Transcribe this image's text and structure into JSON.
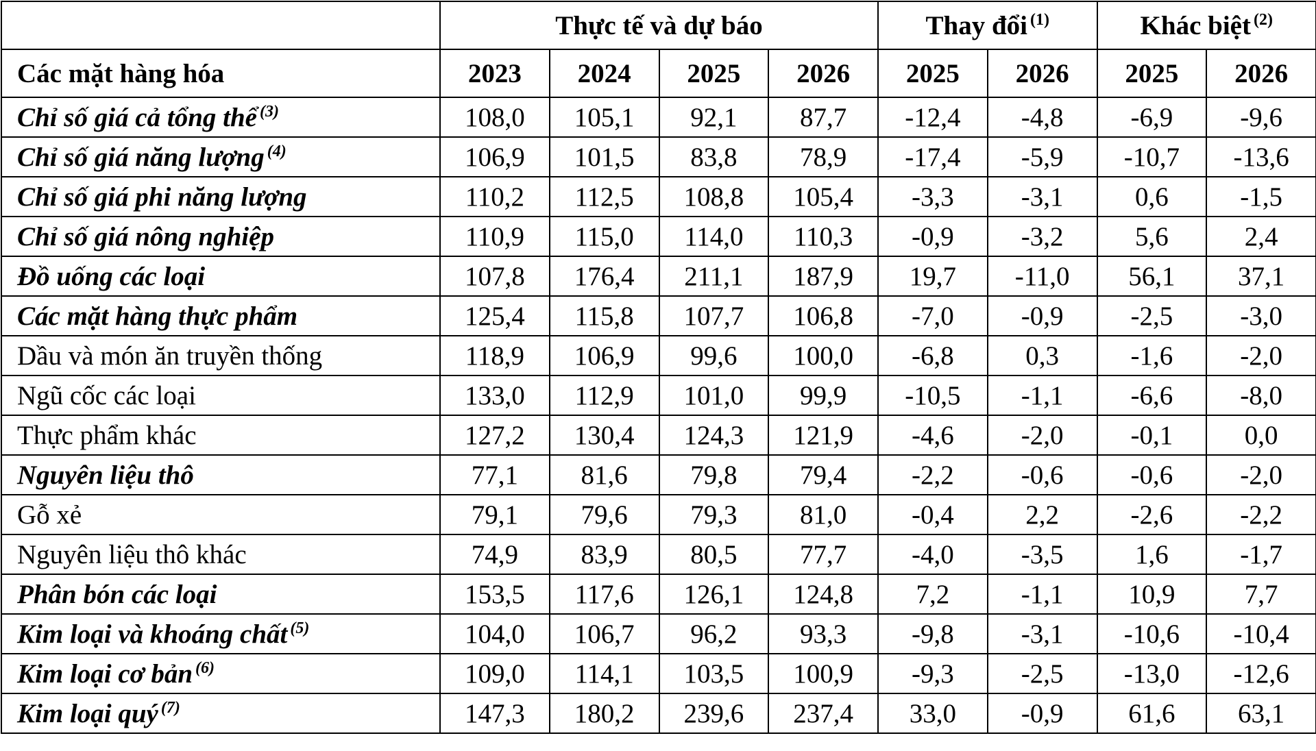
{
  "table": {
    "header_groups": [
      {
        "label": "Thực tế và dự báo",
        "note": null,
        "span": 4
      },
      {
        "label": "Thay đổi",
        "note": "(1)",
        "span": 2
      },
      {
        "label": "Khác biệt",
        "note": "(2)",
        "span": 2
      }
    ],
    "label_header": "Các mặt hàng hóa",
    "columns": [
      "2023",
      "2024",
      "2025",
      "2026",
      "2025",
      "2026",
      "2025",
      "2026"
    ],
    "rows": [
      {
        "label": "Chỉ số giá cả tổng thể",
        "note": "(3)",
        "style": "bold-italic",
        "values": [
          "108,0",
          "105,1",
          "92,1",
          "87,7",
          "-12,4",
          "-4,8",
          "-6,9",
          "-9,6"
        ]
      },
      {
        "label": "Chỉ số giá năng lượng",
        "note": "(4)",
        "style": "bold-italic",
        "values": [
          "106,9",
          "101,5",
          "83,8",
          "78,9",
          "-17,4",
          "-5,9",
          "-10,7",
          "-13,6"
        ]
      },
      {
        "label": "Chỉ số giá phi năng lượng",
        "note": null,
        "style": "bold-italic",
        "values": [
          "110,2",
          "112,5",
          "108,8",
          "105,4",
          "-3,3",
          "-3,1",
          "0,6",
          "-1,5"
        ]
      },
      {
        "label": "Chỉ số giá nông nghiệp",
        "note": null,
        "style": "bold-italic",
        "values": [
          "110,9",
          "115,0",
          "114,0",
          "110,3",
          "-0,9",
          "-3,2",
          "5,6",
          "2,4"
        ]
      },
      {
        "label": "Đồ uống các loại",
        "note": null,
        "style": "bold-italic",
        "values": [
          "107,8",
          "176,4",
          "211,1",
          "187,9",
          "19,7",
          "-11,0",
          "56,1",
          "37,1"
        ]
      },
      {
        "label": "Các mặt hàng thực phẩm",
        "note": null,
        "style": "bold-italic",
        "values": [
          "125,4",
          "115,8",
          "107,7",
          "106,8",
          "-7,0",
          "-0,9",
          "-2,5",
          "-3,0"
        ]
      },
      {
        "label": "Dầu và món ăn truyền thống",
        "note": null,
        "style": "plain",
        "values": [
          "118,9",
          "106,9",
          "99,6",
          "100,0",
          "-6,8",
          "0,3",
          "-1,6",
          "-2,0"
        ]
      },
      {
        "label": "Ngũ cốc các loại",
        "note": null,
        "style": "plain",
        "values": [
          "133,0",
          "112,9",
          "101,0",
          "99,9",
          "-10,5",
          "-1,1",
          "-6,6",
          "-8,0"
        ]
      },
      {
        "label": "Thực phẩm khác",
        "note": null,
        "style": "plain",
        "values": [
          "127,2",
          "130,4",
          "124,3",
          "121,9",
          "-4,6",
          "-2,0",
          "-0,1",
          "0,0"
        ]
      },
      {
        "label": "Nguyên liệu thô",
        "note": null,
        "style": "bold-italic",
        "values": [
          "77,1",
          "81,6",
          "79,8",
          "79,4",
          "-2,2",
          "-0,6",
          "-0,6",
          "-2,0"
        ]
      },
      {
        "label": "Gỗ xẻ",
        "note": null,
        "style": "plain",
        "values": [
          "79,1",
          "79,6",
          "79,3",
          "81,0",
          "-0,4",
          "2,2",
          "-2,6",
          "-2,2"
        ]
      },
      {
        "label": "Nguyên liệu thô khác",
        "note": null,
        "style": "plain",
        "values": [
          "74,9",
          "83,9",
          "80,5",
          "77,7",
          "-4,0",
          "-3,5",
          "1,6",
          "-1,7"
        ]
      },
      {
        "label": "Phân bón các loại",
        "note": null,
        "style": "bold-italic",
        "values": [
          "153,5",
          "117,6",
          "126,1",
          "124,8",
          "7,2",
          "-1,1",
          "10,9",
          "7,7"
        ]
      },
      {
        "label": "Kim loại và khoáng chất",
        "note": "(5)",
        "style": "bold-italic",
        "values": [
          "104,0",
          "106,7",
          "96,2",
          "93,3",
          "-9,8",
          "-3,1",
          "-10,6",
          "-10,4"
        ]
      },
      {
        "label": "Kim loại cơ bản",
        "note": "(6)",
        "style": "bold-italic",
        "values": [
          "109,0",
          "114,1",
          "103,5",
          "100,9",
          "-9,3",
          "-2,5",
          "-13,0",
          "-12,6"
        ]
      },
      {
        "label": "Kim loại quý",
        "note": "(7)",
        "style": "bold-italic",
        "values": [
          "147,3",
          "180,2",
          "239,6",
          "237,4",
          "33,0",
          "-0,9",
          "61,6",
          "63,1"
        ]
      }
    ]
  }
}
